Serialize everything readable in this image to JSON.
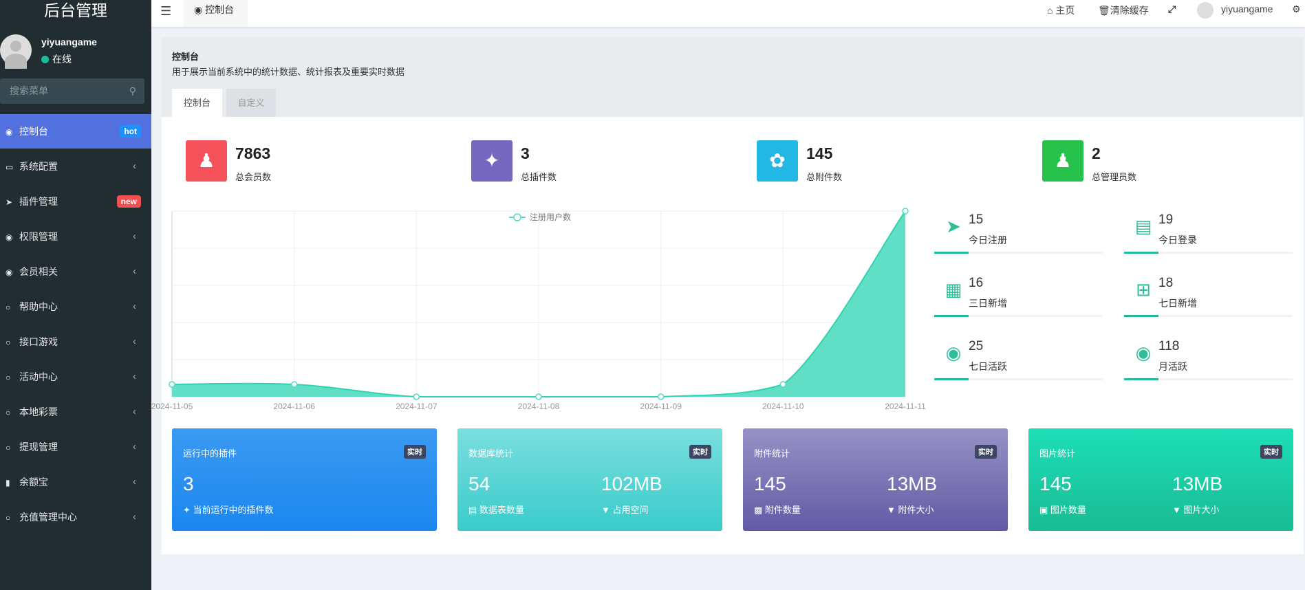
{
  "sidebar": {
    "title": "后台管理",
    "user": {
      "name": "yiyuangame",
      "status": "在线"
    },
    "search_placeholder": "搜索菜单",
    "items": [
      {
        "label": "控制台",
        "icon": "dashboard-icon",
        "badge": "hot",
        "badge_color": "#1e90ff",
        "active": true
      },
      {
        "label": "系统配置",
        "icon": "desktop-icon"
      },
      {
        "label": "插件管理",
        "icon": "rocket-icon",
        "badge": "new",
        "badge_color": "#f0504f"
      },
      {
        "label": "权限管理",
        "icon": "users-icon"
      },
      {
        "label": "会员相关",
        "icon": "users-icon"
      },
      {
        "label": "帮助中心",
        "icon": "circle-icon"
      },
      {
        "label": "接口游戏",
        "icon": "circle-icon"
      },
      {
        "label": "活动中心",
        "icon": "circle-icon"
      },
      {
        "label": "本地彩票",
        "icon": "circle-icon"
      },
      {
        "label": "提现管理",
        "icon": "circle-icon"
      },
      {
        "label": "余额宝",
        "icon": "chart-icon"
      },
      {
        "label": "充值管理中心",
        "icon": "circle-icon"
      }
    ]
  },
  "header": {
    "nav_tab": "控制台",
    "home": "主页",
    "clear_cache": "清除缓存",
    "username": "yiyuangame"
  },
  "page": {
    "title": "控制台",
    "subtitle": "用于展示当前系统中的统计数据、统计报表及重要实时数据",
    "tabs": [
      "控制台",
      "自定义"
    ]
  },
  "stats": [
    {
      "value": "7863",
      "label": "总会员数",
      "color": "#f4515a",
      "icon": "users-icon"
    },
    {
      "value": "3",
      "label": "总插件数",
      "color": "#7566c0",
      "icon": "magic-icon"
    },
    {
      "value": "145",
      "label": "总附件数",
      "color": "#23b7e5",
      "icon": "leaf-icon"
    },
    {
      "value": "2",
      "label": "总管理员数",
      "color": "#27c24c",
      "icon": "user-icon"
    }
  ],
  "chart_data": {
    "type": "area",
    "legend": "注册用户数",
    "categories": [
      "2024-11-05",
      "2024-11-06",
      "2024-11-07",
      "2024-11-08",
      "2024-11-09",
      "2024-11-10",
      "2024-11-11"
    ],
    "values": [
      1,
      1,
      0,
      0,
      0,
      1,
      15
    ],
    "ylim": [
      0,
      15
    ],
    "grid": true,
    "color": "#4fdcc0"
  },
  "side_stats": [
    {
      "value": "15",
      "label": "今日注册",
      "icon": "rocket-icon"
    },
    {
      "value": "19",
      "label": "今日登录",
      "icon": "vcard-icon"
    },
    {
      "value": "16",
      "label": "三日新增",
      "icon": "calendar-icon"
    },
    {
      "value": "18",
      "label": "七日新增",
      "icon": "calendar-plus-icon"
    },
    {
      "value": "25",
      "label": "七日活跃",
      "icon": "user-circle-icon"
    },
    {
      "value": "118",
      "label": "月活跃",
      "icon": "user-circle-icon"
    }
  ],
  "cards": [
    {
      "title": "运行中的插件",
      "badge": "实时",
      "v1": "3",
      "l1": "当前运行中的插件数",
      "grad": [
        "#3b9af2",
        "#1a87ef"
      ]
    },
    {
      "title": "数据库统计",
      "badge": "实时",
      "v1": "54",
      "l1": "数据表数量",
      "v2": "102MB",
      "l2": "占用空间",
      "grad": [
        "#7adede",
        "#3acbcb"
      ]
    },
    {
      "title": "附件统计",
      "badge": "实时",
      "v1": "145",
      "l1": "附件数量",
      "v2": "13MB",
      "l2": "附件大小",
      "grad": [
        "#9692c6",
        "#625aa5"
      ]
    },
    {
      "title": "图片统计",
      "badge": "实时",
      "v1": "145",
      "l1": "图片数量",
      "v2": "13MB",
      "l2": "图片大小",
      "grad": [
        "#1ddfb8",
        "#19bb93"
      ]
    }
  ]
}
